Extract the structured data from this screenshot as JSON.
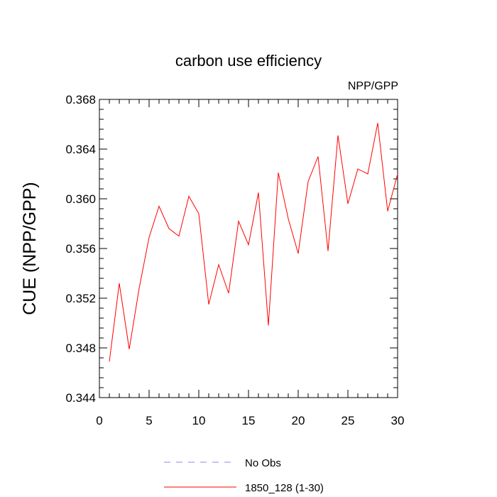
{
  "chart_data": {
    "type": "line",
    "title": "carbon use efficiency",
    "subtitle": "NPP/GPP",
    "xlabel": "",
    "ylabel": "CUE  (NPP/GPP)",
    "xlim": [
      0,
      30
    ],
    "ylim": [
      0.344,
      0.368
    ],
    "grid": false,
    "legend_position": "bottom-center",
    "x_ticks": [
      0,
      5,
      10,
      15,
      20,
      25,
      30
    ],
    "x_tick_labels": [
      "0",
      "5",
      "10",
      "15",
      "20",
      "25",
      "30"
    ],
    "y_ticks": [
      0.344,
      0.348,
      0.352,
      0.356,
      0.36,
      0.364,
      0.368
    ],
    "y_tick_labels": [
      "0.344",
      "0.348",
      "0.352",
      "0.356",
      "0.360",
      "0.364",
      "0.368"
    ],
    "series": [
      {
        "name": "No Obs",
        "color": "#8a8ae6",
        "dash": true,
        "x": [],
        "values": []
      },
      {
        "name": "1850_128 (1-30)",
        "color": "#ff0000",
        "dash": false,
        "x": [
          1,
          2,
          3,
          4,
          5,
          6,
          7,
          8,
          9,
          10,
          11,
          12,
          13,
          14,
          15,
          16,
          17,
          18,
          19,
          20,
          21,
          22,
          23,
          24,
          25,
          26,
          27,
          28,
          29,
          30
        ],
        "values": [
          0.3469,
          0.3532,
          0.3479,
          0.3528,
          0.3569,
          0.3594,
          0.3576,
          0.357,
          0.3602,
          0.3588,
          0.3515,
          0.3547,
          0.3524,
          0.3582,
          0.3563,
          0.3605,
          0.3498,
          0.3621,
          0.3584,
          0.3556,
          0.3614,
          0.3634,
          0.3558,
          0.3651,
          0.3596,
          0.3624,
          0.362,
          0.3661,
          0.359,
          0.362
        ]
      }
    ]
  }
}
